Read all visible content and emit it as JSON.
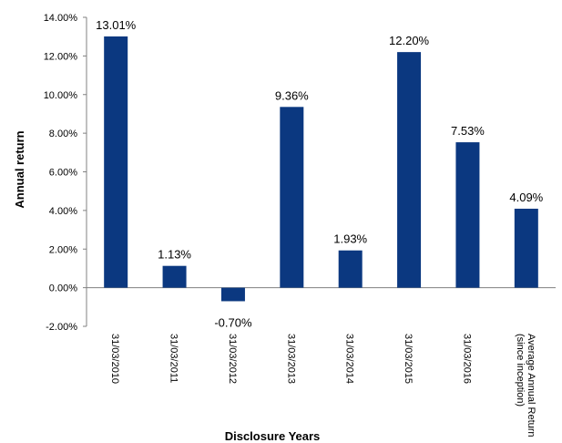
{
  "chart_data": {
    "type": "bar",
    "categories": [
      [
        "31/03/2010"
      ],
      [
        "31/03/2011"
      ],
      [
        "31/03/2012"
      ],
      [
        "31/03/2013"
      ],
      [
        "31/03/2014"
      ],
      [
        "31/03/2015"
      ],
      [
        "31/03/2016"
      ],
      [
        "Average Annual Return",
        "(since inception)"
      ]
    ],
    "values": [
      13.01,
      1.13,
      -0.7,
      9.36,
      1.93,
      12.2,
      7.53,
      4.09
    ],
    "data_labels": [
      "13.01%",
      "1.13%",
      "-0.70%",
      "9.36%",
      "1.93%",
      "12.20%",
      "7.53%",
      "4.09%"
    ],
    "yticks": [
      -2,
      0,
      2,
      4,
      6,
      8,
      10,
      12,
      14
    ],
    "ytick_labels": [
      "-2.00%",
      "0.00%",
      "2.00%",
      "4.00%",
      "6.00%",
      "8.00%",
      "10.00%",
      "12.00%",
      "14.00%"
    ],
    "ylim": [
      -2,
      14
    ],
    "xlabel": "Disclosure Years",
    "ylabel": "Annual return",
    "title": "",
    "grid": false,
    "legend": "none",
    "bar_color": "#0b3880"
  }
}
